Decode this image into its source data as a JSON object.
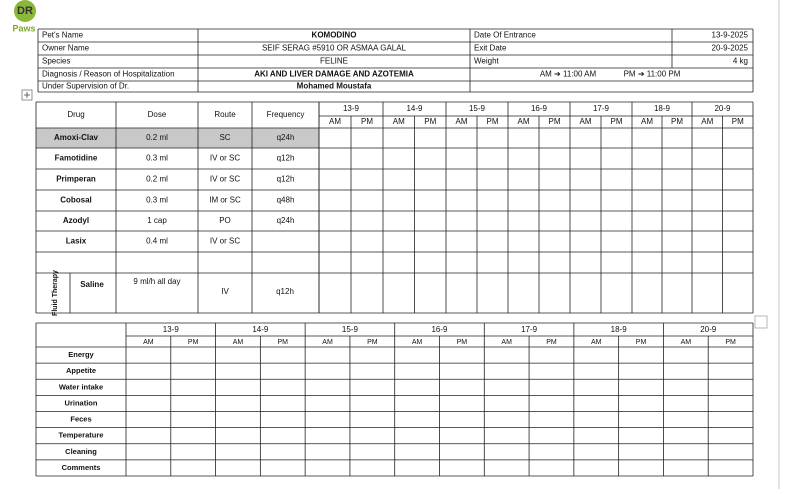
{
  "logo": {
    "text": "DR",
    "subtext": "Paws"
  },
  "info": {
    "rows": [
      [
        "Pet's Name",
        "KOMODINO",
        "Date Of Entrance",
        "13-9-2025"
      ],
      [
        "Owner Name",
        "SEIF SERAG #5910 OR ASMAA GALAL",
        "Exit Date",
        "20-9-2025"
      ],
      [
        "Species",
        "FELINE",
        "Weight",
        "4 kg"
      ],
      [
        "Diagnosis / Reason of Hospitalization",
        "AKI AND LIVER DAMAGE AND AZOTEMIA",
        "AM ➔ 11:00 AM",
        "PM ➔ 11:00 PM"
      ],
      [
        "Under Supervision of Dr.",
        "Mohamed Moustafa"
      ]
    ]
  },
  "days": [
    "13-9",
    "14-9",
    "15-9",
    "16-9",
    "17-9",
    "18-9",
    "20-9"
  ],
  "shifts": [
    "AM",
    "PM"
  ],
  "medication": {
    "headers": [
      "Drug",
      "Dose",
      "Route",
      "Frequency"
    ],
    "rows": [
      {
        "drug": "Amoxi-Clav",
        "dose": "0.2 ml",
        "route": "SC",
        "frequency": "q24h"
      },
      {
        "drug": "Famotidine",
        "dose": "0.3 ml",
        "route": "IV or SC",
        "frequency": "q12h"
      },
      {
        "drug": "Primperan",
        "dose": "0.2 ml",
        "route": "IV or SC",
        "frequency": "q12h"
      },
      {
        "drug": "Cobosal",
        "dose": "0.3 ml",
        "route": "IM or SC",
        "frequency": "q48h"
      },
      {
        "drug": "Azodyl",
        "dose": "1 cap",
        "route": "PO",
        "frequency": "q24h"
      },
      {
        "drug": "Lasix",
        "dose": "0.4 ml",
        "route": "IV or SC"
      }
    ],
    "fluid": {
      "label": "Fluid Therapy",
      "drug": "Saline",
      "dose": "9 ml/h all day",
      "route": "IV",
      "frequency": "q12h"
    }
  },
  "observation": {
    "rows": [
      "Energy",
      "Appetite",
      "Water intake",
      "Urination",
      "Feces",
      "Temperature",
      "Cleaning",
      "Comments"
    ]
  }
}
